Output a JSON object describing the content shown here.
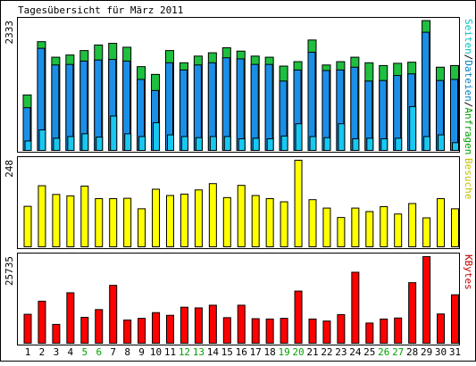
{
  "chart_data": {
    "type": "bar",
    "title": "Tagesübersicht für März 2011",
    "categories": [
      "1",
      "2",
      "3",
      "4",
      "5",
      "6",
      "7",
      "8",
      "9",
      "10",
      "11",
      "12",
      "13",
      "14",
      "15",
      "16",
      "17",
      "18",
      "19",
      "20",
      "21",
      "22",
      "23",
      "24",
      "25",
      "26",
      "27",
      "28",
      "29",
      "30",
      "31"
    ],
    "weekend_days": [
      "5",
      "6",
      "12",
      "13",
      "19",
      "20",
      "26",
      "27"
    ],
    "panels": [
      {
        "id": "traffic",
        "max_label": "2333",
        "ylim": [
          0,
          2333
        ],
        "legend": [
          "Seiten",
          "Dateien",
          "Anfragen"
        ],
        "legend_separator": "/",
        "legend_colors": [
          "#00c0c0",
          "#0080c0",
          "#00a000"
        ],
        "series": [
          {
            "name": "Anfragen",
            "color": "#1fbf3f",
            "values": [
              1000,
              1960,
              1680,
              1720,
              1800,
              1900,
              1930,
              1860,
              1510,
              1370,
              1800,
              1580,
              1700,
              1760,
              1850,
              1790,
              1700,
              1680,
              1520,
              1600,
              1990,
              1540,
              1600,
              1680,
              1580,
              1530,
              1570,
              1590,
              2340,
              1500,
              1530
            ]
          },
          {
            "name": "Dateien",
            "color": "#1a8fe8",
            "values": [
              770,
              1840,
              1540,
              1550,
              1610,
              1630,
              1640,
              1610,
              1280,
              1080,
              1580,
              1450,
              1540,
              1580,
              1670,
              1650,
              1550,
              1550,
              1250,
              1450,
              1770,
              1440,
              1450,
              1500,
              1250,
              1260,
              1350,
              1380,
              2130,
              1260,
              1280
            ]
          },
          {
            "name": "Seiten",
            "color": "#18c8f0",
            "values": [
              170,
              370,
              220,
              250,
              300,
              240,
              620,
              300,
              250,
              500,
              280,
              250,
              230,
              250,
              250,
              210,
              220,
              210,
              260,
              480,
              250,
              230,
              480,
              210,
              220,
              210,
              220,
              790,
              250,
              280,
              140
            ]
          }
        ]
      },
      {
        "id": "visits",
        "max_label": "248",
        "ylim": [
          0,
          248
        ],
        "legend": [
          "Besuche"
        ],
        "legend_colors": [
          "#c0c000"
        ],
        "series": [
          {
            "name": "Besuche",
            "color": "#ffff00",
            "values": [
              116,
              175,
              150,
              146,
              174,
              138,
              138,
              139,
              109,
              165,
              147,
              151,
              163,
              181,
              141,
              176,
              147,
              138,
              129,
              248,
              135,
              111,
              84,
              111,
              101,
              115,
              94,
              124,
              83,
              138,
              109
            ]
          }
        ]
      },
      {
        "id": "kbytes",
        "max_label": "25735",
        "ylim": [
          0,
          25735
        ],
        "legend": [
          "KBytes"
        ],
        "legend_colors": [
          "#c00000"
        ],
        "series": [
          {
            "name": "KBytes",
            "color": "#ff0000",
            "values": [
              8600,
              12500,
              5600,
              15000,
              7700,
              10000,
              17200,
              6900,
              7400,
              9100,
              8300,
              10700,
              10500,
              11300,
              7600,
              11300,
              7300,
              7200,
              7400,
              15500,
              7200,
              6600,
              8500,
              21100,
              6000,
              7200,
              7500,
              18000,
              25735,
              8700,
              14400
            ]
          }
        ]
      }
    ]
  }
}
